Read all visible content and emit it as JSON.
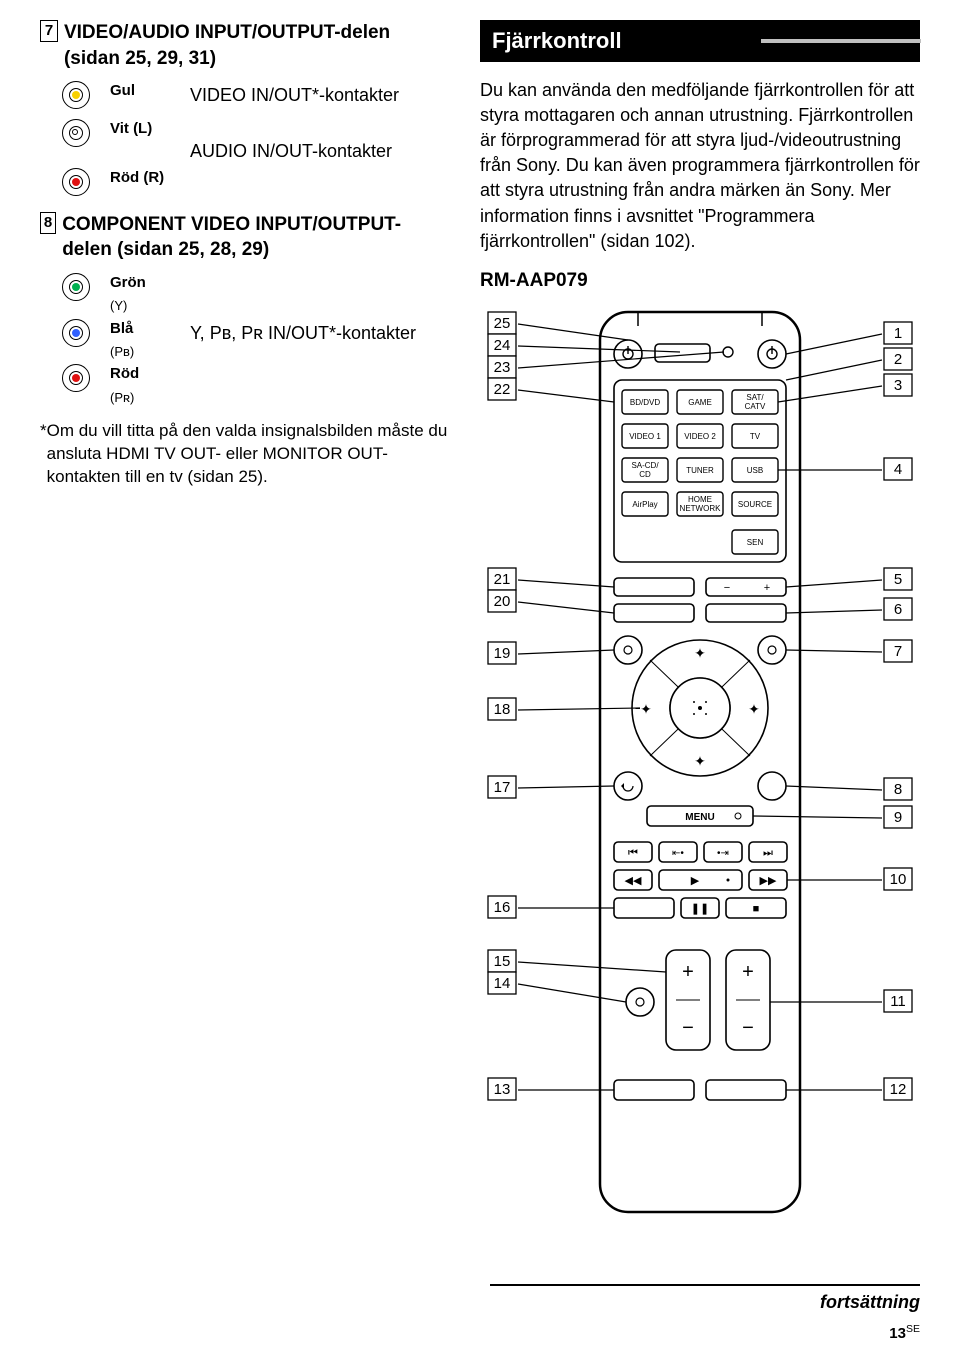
{
  "section7": {
    "num": "7",
    "title": "VIDEO/AUDIO INPUT/OUTPUT-delen (sidan 25, 29, 31)",
    "rows": [
      {
        "color": "Gul",
        "sub": "",
        "fill": "yellow",
        "label": "VIDEO IN/OUT*-kontakter"
      },
      {
        "color": "Vit (L)",
        "sub": "",
        "fill": "white",
        "label": ""
      },
      {
        "color": "Röd (R)",
        "sub": "",
        "fill": "red",
        "label": "AUDIO IN/OUT-kontakter"
      }
    ]
  },
  "section8": {
    "num": "8",
    "title": "COMPONENT VIDEO INPUT/OUTPUT-delen (sidan 25, 28, 29)",
    "rows": [
      {
        "color": "Grön",
        "sub": "(Y)",
        "fill": "green",
        "label": ""
      },
      {
        "color": "Blå",
        "sub": "(Pʙ)",
        "fill": "blue",
        "label": "Y, Pʙ, Pʀ IN/OUT*-kontakter"
      },
      {
        "color": "Röd",
        "sub": "(Pʀ)",
        "fill": "red",
        "label": ""
      }
    ]
  },
  "footnote": "Om du vill titta på den valda insignalsbilden måste du ansluta HDMI TV OUT- eller MONITOR OUT-kontakten till en tv (sidan 25).",
  "fj_title": "Fjärrkontroll",
  "fj_body": "Du kan använda den medföljande fjärrkontrollen för att styra mottagaren och annan utrustning. Fjärrkontrollen är förprogrammerad för att styra ljud-/videoutrustning från Sony. Du kan även programmera fjärrkontrollen för att styra utrustning från andra märken än Sony. Mer information finns i avsnittet \"Programmera fjärrkontrollen\" (sidan 102).",
  "model": "RM-AAP079",
  "remote_buttons": {
    "row1": [
      "BD/DVD",
      "GAME",
      "SAT/\nCATV"
    ],
    "row2": [
      "VIDEO 1",
      "VIDEO 2",
      "TV"
    ],
    "row3": [
      "SA-CD/\nCD",
      "TUNER",
      "USB"
    ],
    "row4": [
      "AirPlay",
      "HOME\nNETWORK",
      "SOURCE"
    ],
    "sen": "SEN",
    "menu": "MENU"
  },
  "callouts_left": [
    "25",
    "24",
    "23",
    "22",
    "21",
    "20",
    "19",
    "18",
    "17",
    "16",
    "15",
    "14",
    "13"
  ],
  "callouts_right": [
    "1",
    "2",
    "3",
    "4",
    "5",
    "6",
    "7",
    "8",
    "9",
    "10",
    "11",
    "12"
  ],
  "cont": "fortsättning",
  "pagenum": "13",
  "pagesuffix": "SE"
}
